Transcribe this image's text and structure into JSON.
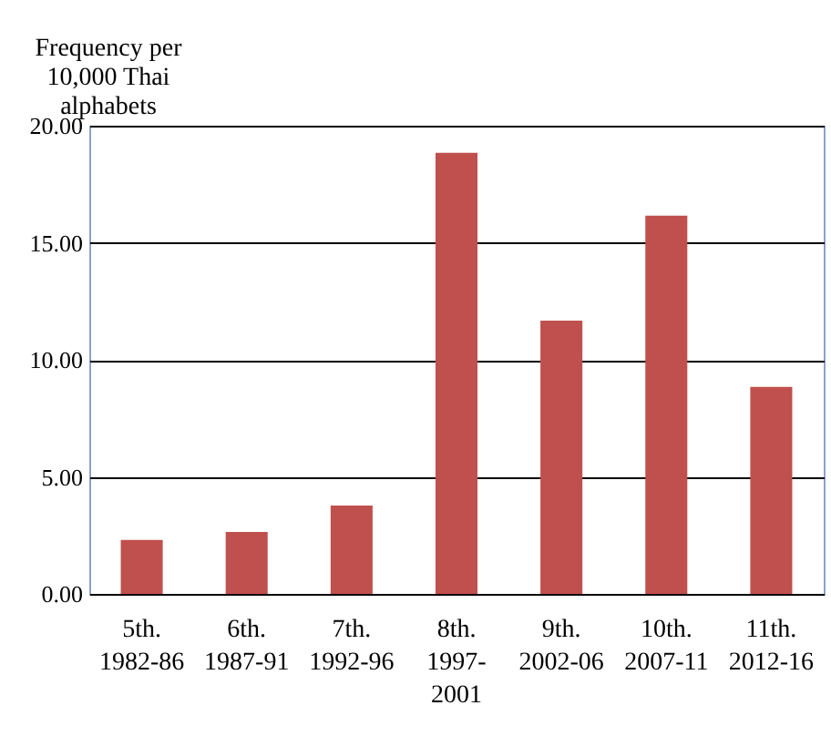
{
  "chart_data": {
    "type": "bar",
    "ylabel": "Frequency per\n10,000  Thai\nalphabets",
    "categories": [
      "5th.\n\n1982-86",
      "6th.\n\n1987-91",
      "7th.\n\n1992-96",
      "8th.\n\n1997-\n2001",
      "9th.\n\n2002-06",
      "10th.\n\n2007-11",
      "11th.\n\n2012-16"
    ],
    "values": [
      2.31,
      2.65,
      3.77,
      18.84,
      11.67,
      16.16,
      8.84
    ],
    "color": "#c0504d",
    "ylim": [
      0,
      20
    ],
    "yticks": [
      {
        "value": 0,
        "label": "0.00"
      },
      {
        "value": 5,
        "label": "5.00"
      },
      {
        "value": 10,
        "label": "10.00"
      },
      {
        "value": 15,
        "label": "15.00"
      },
      {
        "value": 20,
        "label": "20.00"
      }
    ],
    "grid": "y"
  }
}
